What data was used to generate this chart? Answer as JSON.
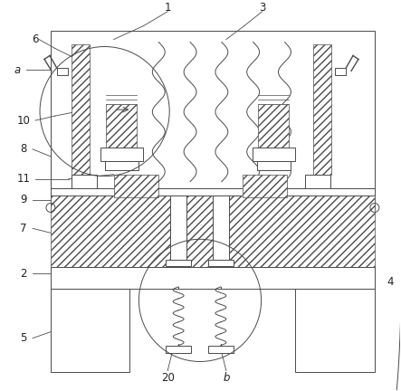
{
  "bg_color": "#ffffff",
  "line_color": "#4a4a4a",
  "figsize": [
    4.43,
    4.32
  ],
  "dpi": 100,
  "font_size": 8.5,
  "label_color": "#222222"
}
